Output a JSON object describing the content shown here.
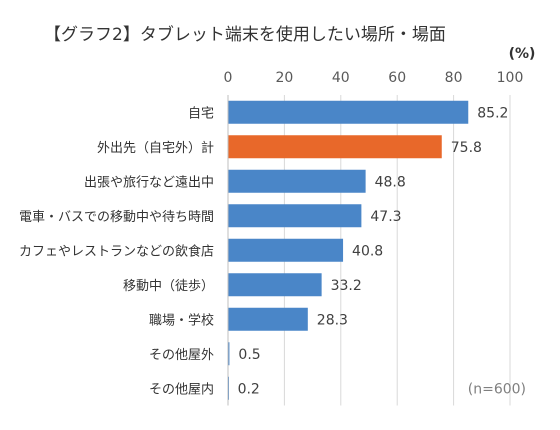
{
  "chart_data": {
    "type": "bar",
    "orientation": "horizontal",
    "title": "【グラフ2】タブレット端末を使用したい場所・場面",
    "unit": "(%)",
    "note": "(n=600)",
    "xlim": [
      0,
      100
    ],
    "x_ticks": [
      0,
      20,
      40,
      60,
      80,
      100
    ],
    "grid": true,
    "categories": [
      "自宅",
      "外出先（自宅外）計",
      "出張や旅行など遠出中",
      "電車・バスでの移動中や待ち時間",
      "カフェやレストランなどの飲食店",
      "移動中（徒歩）",
      "職場・学校",
      "その他屋外",
      "その他屋内"
    ],
    "values": [
      85.2,
      75.8,
      48.8,
      47.3,
      40.8,
      33.2,
      28.3,
      0.5,
      0.2
    ],
    "value_labels": [
      "85.2",
      "75.8",
      "48.8",
      "47.3",
      "40.8",
      "33.2",
      "28.3",
      "0.5",
      "0.2"
    ],
    "bar_colors": [
      "#4a86c8",
      "#e8682a",
      "#4a86c8",
      "#4a86c8",
      "#4a86c8",
      "#4a86c8",
      "#4a86c8",
      "#4a86c8",
      "#4a86c8"
    ]
  }
}
